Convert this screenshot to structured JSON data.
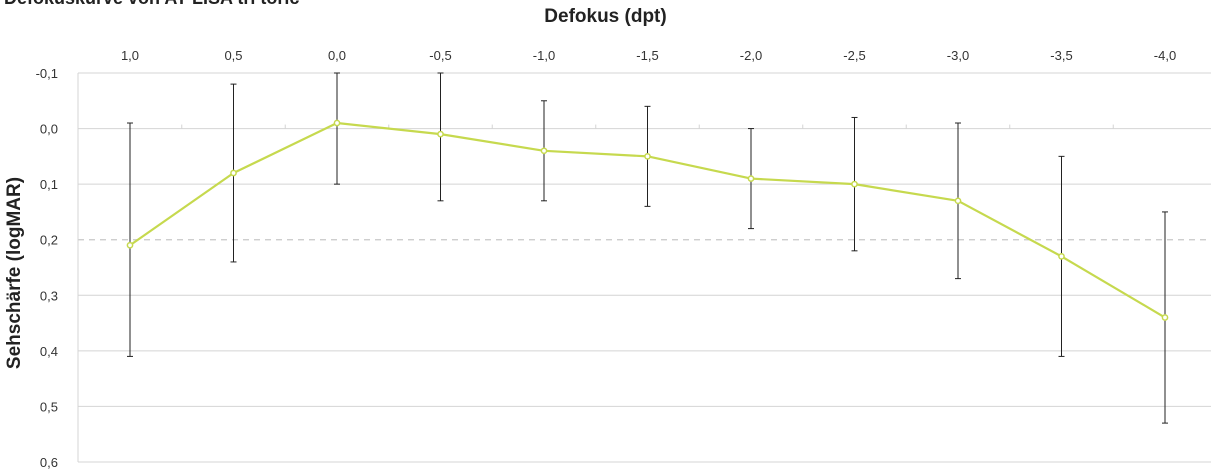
{
  "chart_data": {
    "type": "line",
    "title": "Defokuskurve von AT LISA tri toric",
    "xlabel": "Defokus (dpt)",
    "ylabel": "Sehschärfe (logMAR)",
    "x_axis_position": "top",
    "y_axis_inverted": true,
    "categories": [
      "1,0",
      "0,5",
      "0,0",
      "-0,5",
      "-1,0",
      "-1,5",
      "-2,0",
      "-2,5",
      "-3,0",
      "-3,5",
      "-4,0"
    ],
    "ylim": [
      -0.1,
      0.6
    ],
    "yticks": [
      "-0,1",
      "0,0",
      "0,1",
      "0,2",
      "0,3",
      "0,4",
      "0,5",
      "0,6"
    ],
    "reference_line": {
      "y": 0.2,
      "style": "dashed",
      "color": "#c8c8c8"
    },
    "series": [
      {
        "color": "#c6d94e",
        "values": [
          0.21,
          0.08,
          -0.01,
          0.01,
          0.04,
          0.05,
          0.09,
          0.1,
          0.13,
          0.23,
          0.34
        ],
        "error_low": [
          -0.01,
          -0.08,
          -0.1,
          -0.1,
          -0.05,
          -0.04,
          0.0,
          -0.02,
          -0.01,
          0.05,
          0.15
        ],
        "error_high": [
          0.41,
          0.24,
          0.1,
          0.13,
          0.13,
          0.14,
          0.18,
          0.22,
          0.27,
          0.41,
          0.53
        ]
      }
    ],
    "grid": true
  }
}
